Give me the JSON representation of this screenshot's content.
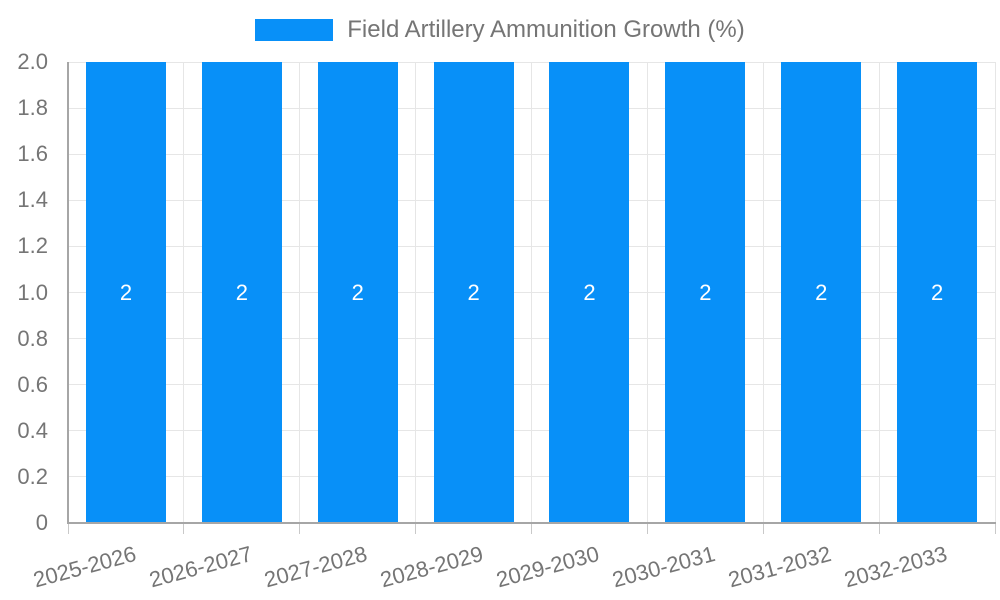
{
  "colors": {
    "bar": "#0890F8",
    "axis_line": "#A6A6A6",
    "gridline": "#E6E6E6",
    "tick": "#C9C9C9",
    "label_text": "#757575",
    "bar_label_text": "#FFFFFF",
    "background": "#FFFFFF"
  },
  "chart_data": {
    "type": "bar",
    "title": "Field Artillery Ammunition Growth (%)",
    "xlabel": "",
    "ylabel": "",
    "categories": [
      "2025-2026",
      "2026-2027",
      "2027-2028",
      "2028-2029",
      "2029-2030",
      "2030-2031",
      "2031-2032",
      "2032-2033"
    ],
    "values": [
      2,
      2,
      2,
      2,
      2,
      2,
      2,
      2
    ],
    "bar_labels": [
      "2",
      "2",
      "2",
      "2",
      "2",
      "2",
      "2",
      "2"
    ],
    "ylim": [
      0,
      2
    ],
    "yticks": [
      {
        "value": 0.0,
        "label": "0"
      },
      {
        "value": 0.2,
        "label": "0.2"
      },
      {
        "value": 0.4,
        "label": "0.4"
      },
      {
        "value": 0.6,
        "label": "0.6"
      },
      {
        "value": 0.8,
        "label": "0.8"
      },
      {
        "value": 1.0,
        "label": "1.0"
      },
      {
        "value": 1.2,
        "label": "1.2"
      },
      {
        "value": 1.4,
        "label": "1.4"
      },
      {
        "value": 1.6,
        "label": "1.6"
      },
      {
        "value": 1.8,
        "label": "1.8"
      },
      {
        "value": 2.0,
        "label": "2.0"
      }
    ],
    "grid": true,
    "legend_position": "top-center",
    "x_label_rotation_deg": -15
  }
}
